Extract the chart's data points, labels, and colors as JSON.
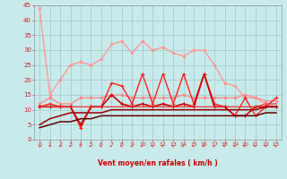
{
  "bg_color": "#c8eaea",
  "grid_color": "#a0c8c8",
  "xlabel": "Vent moyen/en rafales ( km/h )",
  "xlim": [
    -0.5,
    23.5
  ],
  "ylim": [
    0,
    45
  ],
  "yticks": [
    0,
    5,
    10,
    15,
    20,
    25,
    30,
    35,
    40,
    45
  ],
  "xticks": [
    0,
    1,
    2,
    3,
    4,
    5,
    6,
    7,
    8,
    9,
    10,
    11,
    12,
    13,
    14,
    15,
    16,
    17,
    18,
    19,
    20,
    21,
    22,
    23
  ],
  "series": [
    {
      "color": "#ff9999",
      "alpha": 1.0,
      "linewidth": 1.0,
      "marker": "s",
      "markersize": 2.0,
      "data_x": [
        0,
        1,
        2,
        3,
        4,
        5,
        6,
        7,
        8,
        9,
        10,
        11,
        12,
        13,
        14,
        15,
        16,
        17,
        18,
        19,
        20,
        21,
        22,
        23
      ],
      "data_y": [
        44,
        15,
        20,
        25,
        26,
        25,
        27,
        32,
        33,
        29,
        33,
        30,
        31,
        29,
        28,
        30,
        30,
        25,
        19,
        18,
        14,
        14,
        12,
        11
      ]
    },
    {
      "color": "#ff8888",
      "alpha": 0.9,
      "linewidth": 1.0,
      "marker": "s",
      "markersize": 2.0,
      "data_x": [
        0,
        1,
        2,
        3,
        4,
        5,
        6,
        7,
        8,
        9,
        10,
        11,
        12,
        13,
        14,
        15,
        16,
        17,
        18,
        19,
        20,
        21,
        22,
        23
      ],
      "data_y": [
        12,
        14,
        12,
        12,
        14,
        14,
        14,
        15,
        15,
        14,
        14,
        14,
        14,
        14,
        15,
        14,
        14,
        14,
        14,
        14,
        15,
        14,
        13,
        13
      ]
    },
    {
      "color": "#ff2222",
      "alpha": 1.0,
      "linewidth": 1.0,
      "marker": "+",
      "markersize": 3.0,
      "data_x": [
        0,
        1,
        2,
        3,
        4,
        5,
        6,
        7,
        8,
        9,
        10,
        11,
        12,
        13,
        14,
        15,
        16,
        17,
        18,
        19,
        20,
        21,
        22,
        23
      ],
      "data_y": [
        11,
        12,
        11,
        11,
        4,
        11,
        11,
        19,
        18,
        12,
        22,
        12,
        22,
        12,
        22,
        12,
        22,
        12,
        11,
        8,
        14,
        8,
        11,
        14
      ]
    },
    {
      "color": "#cc0000",
      "alpha": 1.0,
      "linewidth": 1.2,
      "marker": "+",
      "markersize": 2.5,
      "data_x": [
        0,
        1,
        2,
        3,
        4,
        5,
        6,
        7,
        8,
        9,
        10,
        11,
        12,
        13,
        14,
        15,
        16,
        17,
        18,
        19,
        20,
        21,
        22,
        23
      ],
      "data_y": [
        11,
        11,
        11,
        11,
        5,
        11,
        11,
        15,
        12,
        11,
        12,
        11,
        12,
        11,
        12,
        11,
        22,
        11,
        11,
        8,
        8,
        11,
        11,
        11
      ]
    },
    {
      "color": "#ee3333",
      "alpha": 0.9,
      "linewidth": 1.0,
      "marker": null,
      "markersize": 0,
      "data_x": [
        0,
        1,
        2,
        3,
        4,
        5,
        6,
        7,
        8,
        9,
        10,
        11,
        12,
        13,
        14,
        15,
        16,
        17,
        18,
        19,
        20,
        21,
        22,
        23
      ],
      "data_y": [
        11,
        11,
        11,
        11,
        11,
        11,
        11,
        11,
        11,
        11,
        11,
        11,
        11,
        11,
        11,
        11,
        11,
        11,
        11,
        11,
        11,
        11,
        12,
        12
      ]
    },
    {
      "color": "#990000",
      "alpha": 1.0,
      "linewidth": 1.1,
      "marker": null,
      "markersize": 0,
      "data_x": [
        0,
        1,
        2,
        3,
        4,
        5,
        6,
        7,
        8,
        9,
        10,
        11,
        12,
        13,
        14,
        15,
        16,
        17,
        18,
        19,
        20,
        21,
        22,
        23
      ],
      "data_y": [
        5,
        7,
        8,
        9,
        9,
        9,
        9,
        10,
        10,
        10,
        10,
        10,
        10,
        10,
        10,
        10,
        10,
        10,
        10,
        10,
        10,
        10,
        11,
        11
      ]
    },
    {
      "color": "#660000",
      "alpha": 1.0,
      "linewidth": 1.1,
      "marker": null,
      "markersize": 0,
      "data_x": [
        0,
        1,
        2,
        3,
        4,
        5,
        6,
        7,
        8,
        9,
        10,
        11,
        12,
        13,
        14,
        15,
        16,
        17,
        18,
        19,
        20,
        21,
        22,
        23
      ],
      "data_y": [
        4,
        5,
        6,
        6,
        7,
        7,
        8,
        8,
        8,
        8,
        8,
        8,
        8,
        8,
        8,
        8,
        8,
        8,
        8,
        8,
        8,
        8,
        9,
        9
      ]
    }
  ],
  "arrow_color": "#ee4444",
  "arrow_angles": [
    45,
    45,
    45,
    315,
    315,
    270,
    270,
    270,
    270,
    270,
    270,
    315,
    270,
    315,
    270,
    270,
    270,
    270,
    270,
    270,
    270,
    270,
    315,
    315
  ]
}
